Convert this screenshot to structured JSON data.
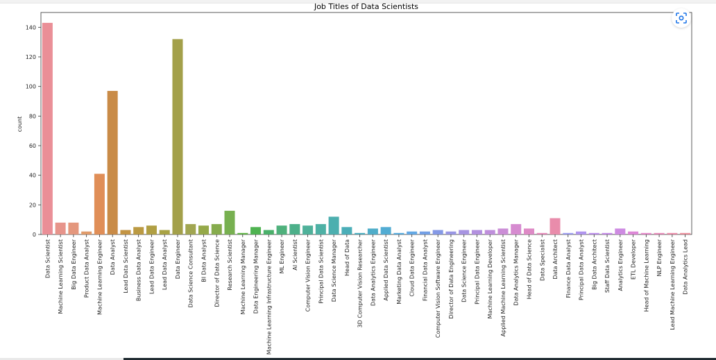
{
  "chart_data": {
    "type": "bar",
    "title": "Job Titles of Data Scientists",
    "xlabel": "",
    "ylabel": "count",
    "ylim": [
      0,
      150
    ],
    "yticks": [
      0,
      20,
      40,
      60,
      80,
      100,
      120,
      140
    ],
    "grid": false,
    "categories": [
      "Data Scientist",
      "Machine Learning Scientist",
      "Big Data Engineer",
      "Product Data Analyst",
      "Machine Learning Engineer",
      "Data Analyst",
      "Lead Data Scientist",
      "Business Data Analyst",
      "Lead Data Engineer",
      "Lead Data Analyst",
      "Data Engineer",
      "Data Science Consultant",
      "BI Data Analyst",
      "Director of Data Science",
      "Research Scientist",
      "Machine Learning Manager",
      "Data Engineering Manager",
      "Machine Learning Infrastructure Engineer",
      "ML Engineer",
      "AI Scientist",
      "Computer Vision Engineer",
      "Principal Data Scientist",
      "Data Science Manager",
      "Head of Data",
      "3D Computer Vision Researcher",
      "Data Analytics Engineer",
      "Applied Data Scientist",
      "Marketing Data Analyst",
      "Cloud Data Engineer",
      "Financial Data Analyst",
      "Computer Vision Software Engineer",
      "Director of Data Engineering",
      "Data Science Engineer",
      "Principal Data Engineer",
      "Machine Learning Developer",
      "Applied Machine Learning Scientist",
      "Data Analytics Manager",
      "Head of Data Science",
      "Data Specialist",
      "Data Architect",
      "Finance Data Analyst",
      "Principal Data Analyst",
      "Big Data Architect",
      "Staff Data Scientist",
      "Analytics Engineer",
      "ETL Developer",
      "Head of Machine Learning",
      "NLP Engineer",
      "Lead Machine Learning Engineer",
      "Data Analytics Lead"
    ],
    "values": [
      143,
      8,
      8,
      2,
      41,
      97,
      3,
      5,
      6,
      3,
      132,
      7,
      6,
      7,
      16,
      1,
      5,
      3,
      6,
      7,
      6,
      7,
      12,
      5,
      1,
      4,
      5,
      1,
      2,
      2,
      3,
      2,
      3,
      3,
      3,
      4,
      7,
      4,
      1,
      11,
      1,
      2,
      1,
      1,
      4,
      2,
      1,
      1,
      1,
      1
    ],
    "colors": [
      "#ea8f97",
      "#e7948b",
      "#e4977d",
      "#e09b6a",
      "#e08e57",
      "#c98b47",
      "#c39443",
      "#bb9a43",
      "#b09f43",
      "#a8a244",
      "#a3a04a",
      "#a1a651",
      "#95a949",
      "#86ac4d",
      "#77b050",
      "#62b449",
      "#4fb351",
      "#4ab06a",
      "#4fb17c",
      "#4db08a",
      "#4fb19a",
      "#4eb1a5",
      "#4cafaf",
      "#4baeb8",
      "#4cadbf",
      "#50adc9",
      "#52acd3",
      "#58abdd",
      "#63a8e4",
      "#739fe5",
      "#8599e6",
      "#9996e4",
      "#a794e1",
      "#b391df",
      "#bf8fdc",
      "#cb8ed6",
      "#d68bd0",
      "#de8ac6",
      "#e48ab9",
      "#e98cab",
      "#9d9df0",
      "#b095ee",
      "#ba8eeb",
      "#c48be6",
      "#ce8be2",
      "#dd88d7",
      "#e388c8",
      "#e58bb8",
      "#e98da9",
      "#ea8f9c"
    ]
  },
  "ui": {
    "focus_icon": "focus-mode-icon"
  }
}
